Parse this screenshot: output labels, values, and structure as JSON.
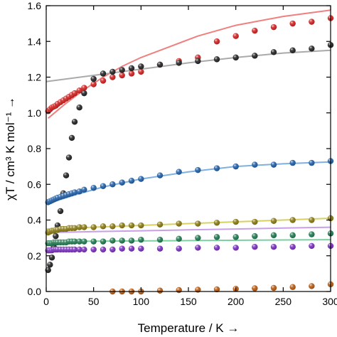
{
  "chart_data": {
    "type": "scatter",
    "xlabel": "Temperature / K →",
    "ylabel": "χT / cm³ K mol⁻¹ →",
    "xlim": [
      0,
      300
    ],
    "ylim": [
      0.0,
      1.6
    ],
    "xticks": [
      0,
      50,
      100,
      150,
      200,
      250,
      300
    ],
    "yticks": [
      0.0,
      0.2,
      0.4,
      0.6,
      0.8,
      1.0,
      1.2,
      1.4,
      1.6
    ],
    "grid": false,
    "legend": "none",
    "series": [
      {
        "color": "#d42020",
        "fit_color": "#f08080",
        "points": [
          [
            2,
            1.01
          ],
          [
            4,
            1.02
          ],
          [
            6,
            1.03
          ],
          [
            8,
            1.035
          ],
          [
            10,
            1.04
          ],
          [
            12,
            1.05
          ],
          [
            15,
            1.06
          ],
          [
            18,
            1.07
          ],
          [
            21,
            1.08
          ],
          [
            24,
            1.09
          ],
          [
            27,
            1.1
          ],
          [
            30,
            1.11
          ],
          [
            35,
            1.125
          ],
          [
            40,
            1.14
          ],
          [
            50,
            1.16
          ],
          [
            60,
            1.18
          ],
          [
            70,
            1.2
          ],
          [
            80,
            1.21
          ],
          [
            90,
            1.22
          ],
          [
            100,
            1.23
          ],
          [
            120,
            1.27
          ],
          [
            140,
            1.29
          ],
          [
            160,
            1.31
          ],
          [
            180,
            1.4
          ],
          [
            200,
            1.43
          ],
          [
            220,
            1.46
          ],
          [
            240,
            1.48
          ],
          [
            260,
            1.5
          ],
          [
            280,
            1.51
          ],
          [
            300,
            1.53
          ]
        ],
        "fit": [
          [
            2,
            0.97
          ],
          [
            20,
            1.05
          ],
          [
            40,
            1.13
          ],
          [
            60,
            1.2
          ],
          [
            80,
            1.26
          ],
          [
            100,
            1.31
          ],
          [
            130,
            1.37
          ],
          [
            160,
            1.43
          ],
          [
            200,
            1.49
          ],
          [
            250,
            1.54
          ],
          [
            300,
            1.575
          ]
        ]
      },
      {
        "color": "#222222",
        "fit_color": "#aaaaaa",
        "points": [
          [
            2,
            0.12
          ],
          [
            4,
            0.15
          ],
          [
            6,
            0.19
          ],
          [
            8,
            0.25
          ],
          [
            10,
            0.31
          ],
          [
            12,
            0.37
          ],
          [
            15,
            0.45
          ],
          [
            18,
            0.55
          ],
          [
            21,
            0.65
          ],
          [
            24,
            0.75
          ],
          [
            27,
            0.86
          ],
          [
            30,
            0.95
          ],
          [
            35,
            1.03
          ],
          [
            40,
            1.11
          ],
          [
            50,
            1.19
          ],
          [
            60,
            1.22
          ],
          [
            70,
            1.23
          ],
          [
            80,
            1.24
          ],
          [
            90,
            1.25
          ],
          [
            100,
            1.26
          ],
          [
            120,
            1.27
          ],
          [
            140,
            1.28
          ],
          [
            160,
            1.29
          ],
          [
            180,
            1.3
          ],
          [
            200,
            1.31
          ],
          [
            220,
            1.32
          ],
          [
            240,
            1.34
          ],
          [
            260,
            1.35
          ],
          [
            280,
            1.36
          ],
          [
            300,
            1.38
          ]
        ],
        "fit": [
          [
            0,
            1.175
          ],
          [
            50,
            1.21
          ],
          [
            100,
            1.245
          ],
          [
            150,
            1.28
          ],
          [
            200,
            1.31
          ],
          [
            250,
            1.335
          ],
          [
            300,
            1.35
          ]
        ]
      },
      {
        "color": "#1f5fa8",
        "fit_color": "#7fb0e0",
        "points": [
          [
            2,
            0.5
          ],
          [
            4,
            0.505
          ],
          [
            6,
            0.51
          ],
          [
            8,
            0.515
          ],
          [
            10,
            0.52
          ],
          [
            12,
            0.525
          ],
          [
            15,
            0.53
          ],
          [
            18,
            0.535
          ],
          [
            21,
            0.54
          ],
          [
            24,
            0.545
          ],
          [
            27,
            0.55
          ],
          [
            30,
            0.555
          ],
          [
            35,
            0.56
          ],
          [
            40,
            0.57
          ],
          [
            50,
            0.58
          ],
          [
            60,
            0.59
          ],
          [
            70,
            0.6
          ],
          [
            80,
            0.61
          ],
          [
            90,
            0.62
          ],
          [
            100,
            0.63
          ],
          [
            120,
            0.65
          ],
          [
            140,
            0.67
          ],
          [
            160,
            0.68
          ],
          [
            180,
            0.69
          ],
          [
            200,
            0.7
          ],
          [
            220,
            0.71
          ],
          [
            240,
            0.71
          ],
          [
            260,
            0.72
          ],
          [
            280,
            0.72
          ],
          [
            300,
            0.73
          ]
        ],
        "fit": [
          [
            0,
            0.49
          ],
          [
            30,
            0.54
          ],
          [
            60,
            0.585
          ],
          [
            100,
            0.63
          ],
          [
            150,
            0.67
          ],
          [
            200,
            0.7
          ],
          [
            250,
            0.715
          ],
          [
            300,
            0.725
          ]
        ]
      },
      {
        "color": "#8a7a10",
        "fit_color": "#d8d060",
        "points": [
          [
            2,
            0.33
          ],
          [
            4,
            0.335
          ],
          [
            6,
            0.34
          ],
          [
            8,
            0.34
          ],
          [
            10,
            0.345
          ],
          [
            12,
            0.345
          ],
          [
            15,
            0.35
          ],
          [
            18,
            0.35
          ],
          [
            21,
            0.35
          ],
          [
            24,
            0.355
          ],
          [
            27,
            0.355
          ],
          [
            30,
            0.355
          ],
          [
            35,
            0.36
          ],
          [
            40,
            0.36
          ],
          [
            50,
            0.36
          ],
          [
            60,
            0.365
          ],
          [
            70,
            0.365
          ],
          [
            80,
            0.37
          ],
          [
            90,
            0.37
          ],
          [
            100,
            0.37
          ],
          [
            120,
            0.375
          ],
          [
            140,
            0.38
          ],
          [
            160,
            0.38
          ],
          [
            180,
            0.385
          ],
          [
            200,
            0.39
          ],
          [
            220,
            0.39
          ],
          [
            240,
            0.395
          ],
          [
            260,
            0.4
          ],
          [
            280,
            0.4
          ],
          [
            300,
            0.41
          ]
        ],
        "fit": [
          [
            0,
            0.35
          ],
          [
            100,
            0.37
          ],
          [
            200,
            0.39
          ],
          [
            300,
            0.41
          ]
        ]
      },
      {
        "color": "#1f7a50",
        "fit_color": "#7ad0a0",
        "points": [
          [
            2,
            0.27
          ],
          [
            4,
            0.27
          ],
          [
            6,
            0.27
          ],
          [
            8,
            0.275
          ],
          [
            10,
            0.275
          ],
          [
            12,
            0.275
          ],
          [
            15,
            0.275
          ],
          [
            18,
            0.275
          ],
          [
            21,
            0.275
          ],
          [
            24,
            0.28
          ],
          [
            27,
            0.28
          ],
          [
            30,
            0.28
          ],
          [
            35,
            0.28
          ],
          [
            40,
            0.28
          ],
          [
            50,
            0.28
          ],
          [
            60,
            0.28
          ],
          [
            70,
            0.285
          ],
          [
            80,
            0.285
          ],
          [
            90,
            0.285
          ],
          [
            100,
            0.29
          ],
          [
            120,
            0.29
          ],
          [
            140,
            0.295
          ],
          [
            160,
            0.3
          ],
          [
            180,
            0.305
          ],
          [
            200,
            0.305
          ],
          [
            220,
            0.31
          ],
          [
            240,
            0.315
          ],
          [
            260,
            0.315
          ],
          [
            280,
            0.32
          ],
          [
            300,
            0.325
          ]
        ],
        "fit": [
          [
            0,
            0.28
          ],
          [
            150,
            0.285
          ],
          [
            300,
            0.29
          ]
        ]
      },
      {
        "color": "#7a2fc0",
        "fit_color": "#c8a0e8",
        "points": [
          [
            2,
            0.23
          ],
          [
            4,
            0.23
          ],
          [
            6,
            0.23
          ],
          [
            8,
            0.235
          ],
          [
            10,
            0.235
          ],
          [
            12,
            0.235
          ],
          [
            15,
            0.235
          ],
          [
            18,
            0.235
          ],
          [
            21,
            0.235
          ],
          [
            24,
            0.235
          ],
          [
            27,
            0.235
          ],
          [
            30,
            0.235
          ],
          [
            35,
            0.235
          ],
          [
            40,
            0.235
          ],
          [
            50,
            0.235
          ],
          [
            60,
            0.235
          ],
          [
            70,
            0.235
          ],
          [
            80,
            0.24
          ],
          [
            90,
            0.24
          ],
          [
            100,
            0.24
          ],
          [
            120,
            0.24
          ],
          [
            140,
            0.24
          ],
          [
            160,
            0.245
          ],
          [
            180,
            0.245
          ],
          [
            200,
            0.245
          ],
          [
            220,
            0.25
          ],
          [
            240,
            0.25
          ],
          [
            260,
            0.25
          ],
          [
            280,
            0.255
          ],
          [
            300,
            0.255
          ]
        ],
        "fit": [
          [
            0,
            0.33
          ],
          [
            50,
            0.335
          ],
          [
            100,
            0.34
          ],
          [
            150,
            0.345
          ],
          [
            200,
            0.35
          ],
          [
            250,
            0.355
          ],
          [
            300,
            0.36
          ]
        ]
      },
      {
        "color": "#b85a10",
        "points": [
          [
            70,
            0.0
          ],
          [
            80,
            0.0
          ],
          [
            90,
            0.0
          ],
          [
            100,
            0.0
          ],
          [
            120,
            0.005
          ],
          [
            140,
            0.008
          ],
          [
            160,
            0.01
          ],
          [
            180,
            0.012
          ],
          [
            200,
            0.015
          ],
          [
            220,
            0.018
          ],
          [
            240,
            0.02
          ],
          [
            260,
            0.025
          ],
          [
            280,
            0.03
          ],
          [
            300,
            0.04
          ]
        ],
        "fit": []
      }
    ]
  }
}
